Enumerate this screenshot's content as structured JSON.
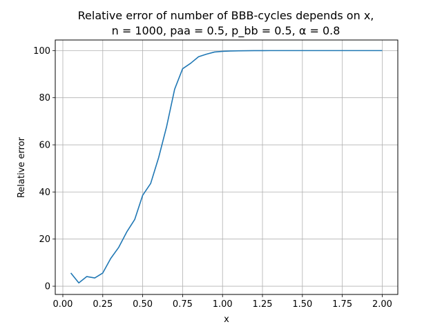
{
  "chart_data": {
    "type": "line",
    "title_line1": "Relative error of number of BBB-cycles depends on x,",
    "title_line2": "n = 1000, paa = 0.5, p_bb = 0.5, α = 0.8",
    "xlabel": "x",
    "ylabel": "Relative error",
    "xlim": [
      -0.0475,
      2.0975
    ],
    "ylim": [
      -3.5,
      104.5
    ],
    "xticks": [
      0.0,
      0.25,
      0.5,
      0.75,
      1.0,
      1.25,
      1.5,
      1.75,
      2.0
    ],
    "xtick_labels": [
      "0.00",
      "0.25",
      "0.50",
      "0.75",
      "1.00",
      "1.25",
      "1.50",
      "1.75",
      "2.00"
    ],
    "yticks": [
      0,
      20,
      40,
      60,
      80,
      100
    ],
    "ytick_labels": [
      "0",
      "20",
      "40",
      "60",
      "80",
      "100"
    ],
    "grid": true,
    "line_color": "#1f77b4",
    "series": [
      {
        "x": [
          0.05,
          0.1,
          0.15,
          0.2,
          0.25,
          0.3,
          0.35,
          0.4,
          0.45,
          0.5,
          0.55,
          0.6,
          0.65,
          0.7,
          0.75,
          0.8,
          0.85,
          0.9,
          0.95,
          1.0,
          1.05,
          1.1,
          1.15,
          1.2,
          1.25,
          1.3,
          1.35,
          1.4,
          1.45,
          1.5,
          1.55,
          1.6,
          1.65,
          1.7,
          1.75,
          1.8,
          1.85,
          1.9,
          1.95,
          2.0
        ],
        "y": [
          5.6,
          1.4,
          4.1,
          3.5,
          5.6,
          11.8,
          16.5,
          23.0,
          28.3,
          38.6,
          43.6,
          54.6,
          67.8,
          83.6,
          92.3,
          94.6,
          97.4,
          98.5,
          99.4,
          99.7,
          99.85,
          99.9,
          99.95,
          99.97,
          99.98,
          100,
          100,
          100,
          100,
          100,
          100,
          100,
          100,
          100,
          100,
          100,
          100,
          100,
          100,
          100
        ]
      }
    ]
  }
}
